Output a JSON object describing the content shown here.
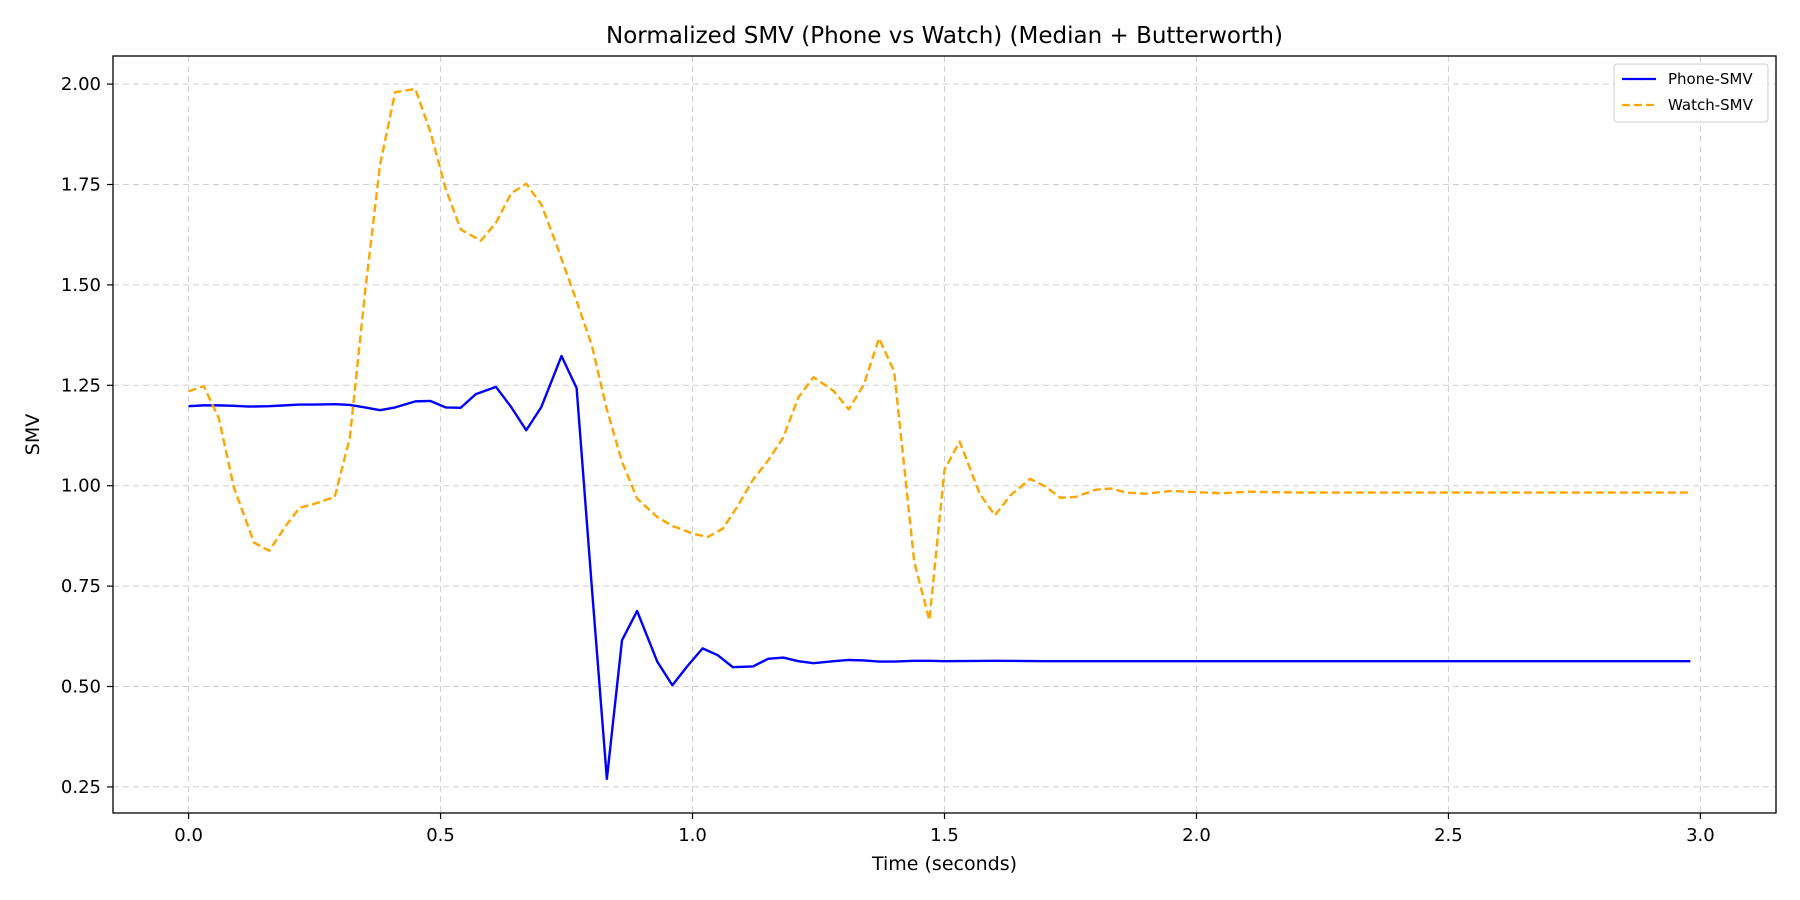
{
  "chart_data": {
    "type": "line",
    "title": "Normalized SMV (Phone vs Watch) (Median + Butterworth)",
    "xlabel": "Time (seconds)",
    "ylabel": "SMV",
    "xlim": [
      -0.15,
      3.15
    ],
    "ylim": [
      0.185,
      2.07
    ],
    "xticks": [
      0.0,
      0.5,
      1.0,
      1.5,
      2.0,
      2.5,
      3.0
    ],
    "xtick_labels": [
      "0.0",
      "0.5",
      "1.0",
      "1.5",
      "2.0",
      "2.5",
      "3.0"
    ],
    "yticks": [
      0.25,
      0.5,
      0.75,
      1.0,
      1.25,
      1.5,
      1.75,
      2.0
    ],
    "ytick_labels": [
      "0.25",
      "0.50",
      "0.75",
      "1.00",
      "1.25",
      "1.50",
      "1.75",
      "2.00"
    ],
    "grid": true,
    "legend": "top-right",
    "series": [
      {
        "name": "Phone-SMV",
        "color": "#0000ff",
        "style": "solid",
        "x": [
          0.0,
          0.03,
          0.06,
          0.09,
          0.12,
          0.16,
          0.19,
          0.22,
          0.25,
          0.29,
          0.32,
          0.35,
          0.38,
          0.41,
          0.45,
          0.48,
          0.51,
          0.54,
          0.57,
          0.61,
          0.64,
          0.67,
          0.7,
          0.74,
          0.77,
          0.8,
          0.83,
          0.86,
          0.89,
          0.93,
          0.96,
          0.99,
          1.02,
          1.05,
          1.08,
          1.12,
          1.15,
          1.18,
          1.21,
          1.24,
          1.28,
          1.31,
          1.34,
          1.37,
          1.4,
          1.44,
          1.47,
          1.5,
          1.6,
          1.7,
          1.8,
          1.9,
          2.0,
          2.2,
          2.4,
          2.6,
          2.8,
          2.98
        ],
        "values": [
          1.198,
          1.2,
          1.2,
          1.199,
          1.197,
          1.198,
          1.2,
          1.202,
          1.202,
          1.203,
          1.201,
          1.195,
          1.188,
          1.195,
          1.21,
          1.211,
          1.195,
          1.194,
          1.228,
          1.246,
          1.196,
          1.138,
          1.196,
          1.323,
          1.243,
          0.75,
          0.27,
          0.615,
          0.688,
          0.562,
          0.503,
          0.551,
          0.595,
          0.578,
          0.548,
          0.55,
          0.569,
          0.572,
          0.563,
          0.558,
          0.563,
          0.566,
          0.565,
          0.562,
          0.562,
          0.564,
          0.564,
          0.563,
          0.564,
          0.563,
          0.563,
          0.563,
          0.563,
          0.563,
          0.563,
          0.563,
          0.563,
          0.563
        ]
      },
      {
        "name": "Watch-SMV",
        "color": "#ffa500",
        "style": "dashed",
        "x": [
          0.0,
          0.03,
          0.06,
          0.09,
          0.13,
          0.16,
          0.19,
          0.22,
          0.25,
          0.29,
          0.32,
          0.35,
          0.38,
          0.41,
          0.45,
          0.48,
          0.51,
          0.54,
          0.58,
          0.61,
          0.64,
          0.67,
          0.7,
          0.73,
          0.77,
          0.8,
          0.83,
          0.86,
          0.89,
          0.93,
          0.96,
          1.0,
          1.03,
          1.06,
          1.09,
          1.12,
          1.15,
          1.18,
          1.21,
          1.24,
          1.28,
          1.31,
          1.34,
          1.37,
          1.4,
          1.44,
          1.47,
          1.5,
          1.53,
          1.57,
          1.6,
          1.63,
          1.67,
          1.7,
          1.73,
          1.76,
          1.8,
          1.83,
          1.86,
          1.9,
          1.95,
          2.0,
          2.05,
          2.1,
          2.2,
          2.4,
          2.6,
          2.8,
          2.98
        ],
        "values": [
          1.235,
          1.248,
          1.168,
          0.995,
          0.858,
          0.838,
          0.895,
          0.945,
          0.955,
          0.972,
          1.12,
          1.48,
          1.8,
          1.98,
          1.988,
          1.88,
          1.74,
          1.638,
          1.61,
          1.655,
          1.728,
          1.752,
          1.7,
          1.6,
          1.46,
          1.35,
          1.19,
          1.06,
          0.968,
          0.922,
          0.9,
          0.881,
          0.872,
          0.893,
          0.95,
          1.015,
          1.063,
          1.12,
          1.22,
          1.27,
          1.236,
          1.19,
          1.252,
          1.367,
          1.285,
          0.81,
          0.665,
          1.04,
          1.11,
          0.98,
          0.926,
          0.975,
          1.017,
          0.998,
          0.97,
          0.972,
          0.99,
          0.993,
          0.983,
          0.98,
          0.987,
          0.984,
          0.981,
          0.985,
          0.983,
          0.983,
          0.983,
          0.983,
          0.983
        ]
      }
    ]
  }
}
